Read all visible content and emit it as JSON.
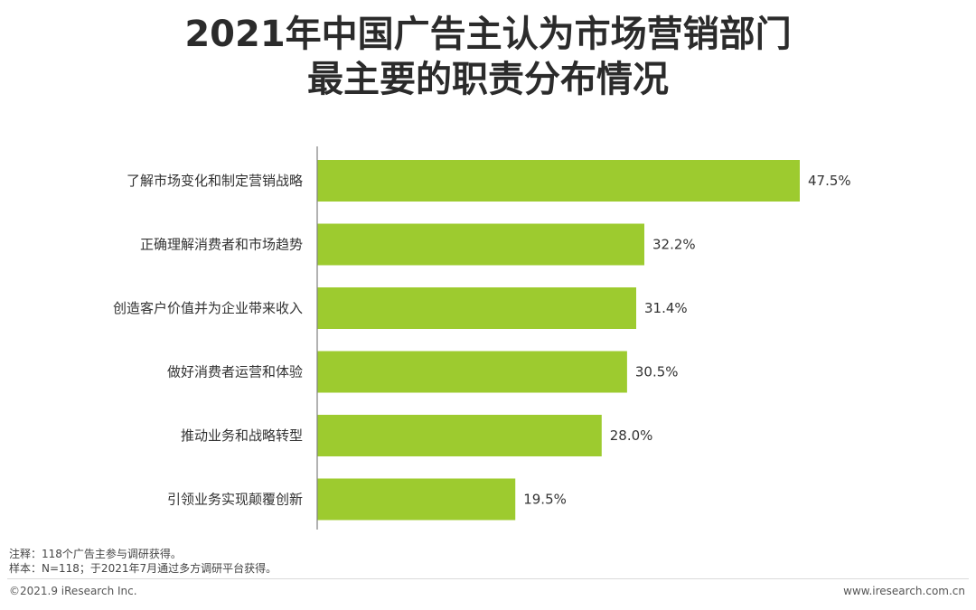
{
  "header": {
    "title_line1": "2021年中国广告主认为市场营销部门",
    "title_line2": "最主要的职责分布情况"
  },
  "chart_data": {
    "type": "bar",
    "orientation": "horizontal",
    "categories": [
      "了解市场变化和制定营销战略",
      "正确理解消费者和市场趋势",
      "创造客户价值并为企业带来收入",
      "做好消费者运营和体验",
      "推动业务和战略转型",
      "引领业务实现颠覆创新"
    ],
    "values": [
      47.5,
      32.2,
      31.4,
      30.5,
      28.0,
      19.5
    ],
    "value_labels": [
      "47.5%",
      "32.2%",
      "31.4%",
      "30.5%",
      "28.0%",
      "19.5%"
    ],
    "unit": "%",
    "bar_color": "#9dcb2f",
    "axis_color": "#7f7f7f",
    "xlim": [
      0,
      50
    ],
    "grid": false,
    "legend": "none"
  },
  "notes": {
    "note1": "注释：118个广告主参与调研获得。",
    "note2": "样本：N=118；于2021年7月通过多方调研平台获得。"
  },
  "footer": {
    "copyright": "©2021.9 iResearch Inc.",
    "website": "www.iresearch.com.cn"
  }
}
